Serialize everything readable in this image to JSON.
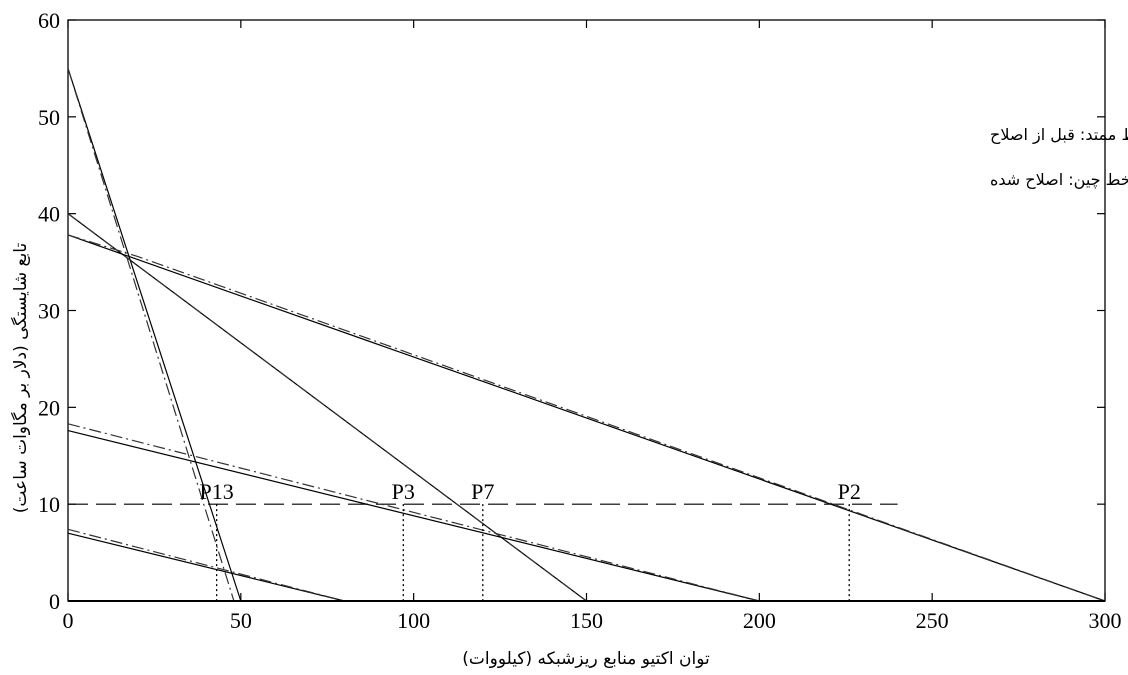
{
  "chart_data": {
    "type": "line",
    "title": "",
    "xlabel": "توان اکتیو منابع ریزشبکه (کیلووات)",
    "ylabel": "تابع شایستگی (دلار بر مگاوات ساعت)",
    "xlim": [
      0,
      300
    ],
    "ylim": [
      0,
      60
    ],
    "x_ticks": [
      0,
      50,
      100,
      150,
      200,
      250,
      300
    ],
    "y_ticks": [
      0,
      10,
      20,
      30,
      40,
      50,
      60
    ],
    "grid": false,
    "annotations": [
      "خط ممتد: قبل از اصلاح",
      "خط چین: اصلاح شده"
    ],
    "threshold": {
      "y": 10,
      "x_start": 0,
      "x_end": 240
    },
    "series": [
      {
        "style": "solid",
        "points": [
          [
            0,
            55
          ],
          [
            50,
            0
          ]
        ]
      },
      {
        "style": "dashdot",
        "points": [
          [
            0,
            55
          ],
          [
            48,
            0
          ]
        ]
      },
      {
        "style": "solid",
        "points": [
          [
            0,
            40
          ],
          [
            150,
            0
          ]
        ]
      },
      {
        "style": "dashdot",
        "points": [
          [
            0,
            40
          ],
          [
            150,
            0
          ]
        ]
      },
      {
        "style": "solid",
        "points": [
          [
            0,
            37.8
          ],
          [
            300,
            0
          ]
        ]
      },
      {
        "style": "dashdot",
        "points": [
          [
            0,
            37.8
          ],
          [
            20,
            35.6
          ],
          [
            300,
            0
          ]
        ]
      },
      {
        "style": "solid",
        "points": [
          [
            0,
            17.6
          ],
          [
            200,
            0
          ]
        ]
      },
      {
        "style": "dashdot",
        "points": [
          [
            0,
            18.3
          ],
          [
            200,
            0
          ]
        ]
      },
      {
        "style": "solid",
        "points": [
          [
            0,
            7
          ],
          [
            80,
            0
          ]
        ]
      },
      {
        "style": "dashdot",
        "points": [
          [
            0,
            7.4
          ],
          [
            80,
            0
          ]
        ]
      }
    ],
    "marked_points": [
      {
        "label": "P13",
        "x": 43,
        "y": 10
      },
      {
        "label": "P3",
        "x": 97,
        "y": 10
      },
      {
        "label": "P7",
        "x": 120,
        "y": 10
      },
      {
        "label": "P2",
        "x": 226,
        "y": 10
      }
    ]
  }
}
